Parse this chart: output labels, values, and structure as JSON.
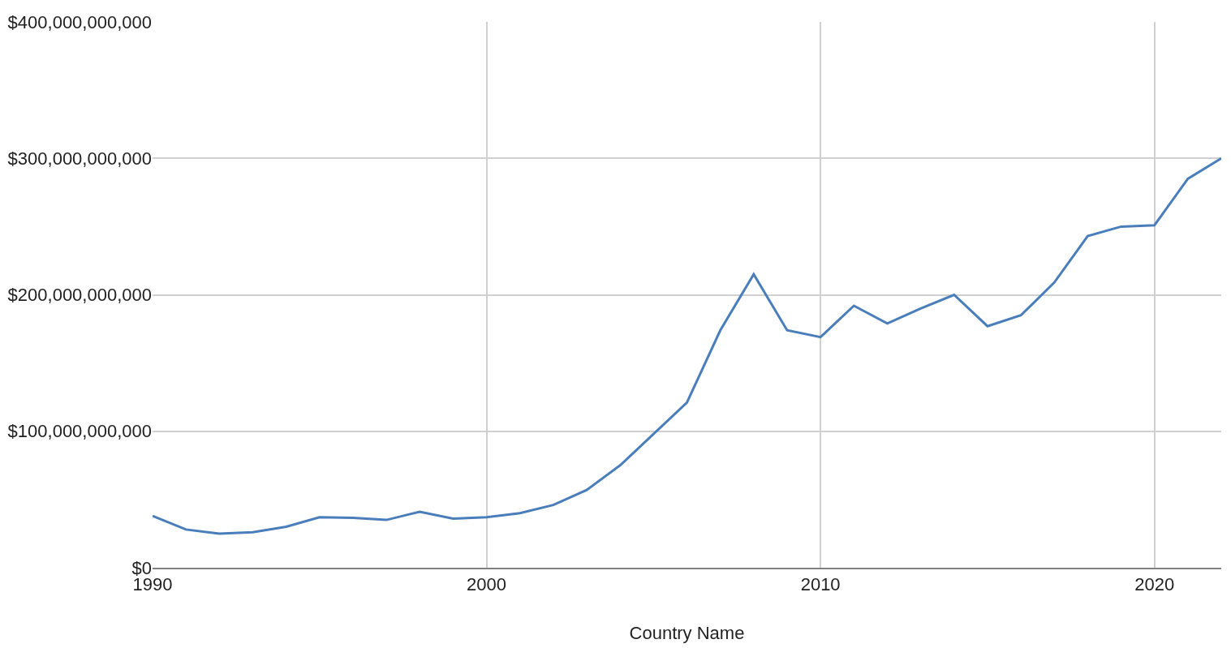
{
  "chart_data": {
    "type": "line",
    "xlabel": "Country Name",
    "x": [
      1990,
      1991,
      1992,
      1993,
      1994,
      1995,
      1996,
      1997,
      1998,
      1999,
      2000,
      2001,
      2002,
      2003,
      2004,
      2005,
      2006,
      2007,
      2008,
      2009,
      2010,
      2011,
      2012,
      2013,
      2014,
      2015,
      2016,
      2017,
      2018,
      2019,
      2020,
      2021,
      2022
    ],
    "series": [
      {
        "color": "#4a7ebb",
        "values": [
          38000000000,
          28000000000,
          25000000000,
          26000000000,
          30000000000,
          37000000000,
          36500000000,
          35000000000,
          41000000000,
          36000000000,
          37000000000,
          40000000000,
          46000000000,
          57000000000,
          75000000000,
          98000000000,
          121000000000,
          174000000000,
          215000000000,
          174000000000,
          169000000000,
          192000000000,
          179000000000,
          190000000000,
          200000000000,
          177000000000,
          185000000000,
          209000000000,
          243000000000,
          250000000000,
          251000000000,
          285000000000,
          300000000000
        ]
      }
    ],
    "xlim": [
      1990,
      2022
    ],
    "xticks": [
      1990,
      2000,
      2010,
      2020
    ],
    "ylim": [
      0,
      400000000000
    ],
    "yticks": [
      {
        "value": 0,
        "label": "$0"
      },
      {
        "value": 100000000000,
        "label": "$100,000,000,000"
      },
      {
        "value": 200000000000,
        "label": "$200,000,000,000"
      },
      {
        "value": 300000000000,
        "label": "$300,000,000,000"
      },
      {
        "value": 400000000000,
        "label": "$400,000,000,000"
      }
    ],
    "grid": true,
    "marker": "none",
    "line_style": "solid",
    "legend": false
  }
}
